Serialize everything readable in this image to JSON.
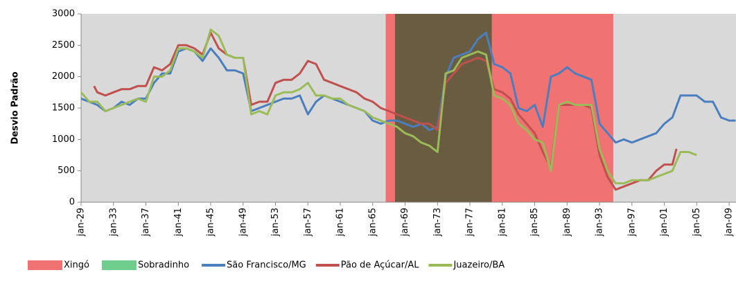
{
  "chart_data": {
    "type": "line",
    "y_label": "Desvio Padrão",
    "xlim": [
      1929,
      2009.85
    ],
    "ylim": [
      0,
      3000
    ],
    "yticks": [
      0,
      500,
      1000,
      1500,
      2000,
      2500,
      3000
    ],
    "xticks": [
      {
        "value": 1929,
        "label": "jan-29"
      },
      {
        "value": 1933,
        "label": "jan-33"
      },
      {
        "value": 1937,
        "label": "jan-37"
      },
      {
        "value": 1941,
        "label": "jan-41"
      },
      {
        "value": 1945,
        "label": "jan-45"
      },
      {
        "value": 1949,
        "label": "jan-49"
      },
      {
        "value": 1953,
        "label": "jan-53"
      },
      {
        "value": 1957,
        "label": "jan-57"
      },
      {
        "value": 1961,
        "label": "jan-61"
      },
      {
        "value": 1965,
        "label": "jan-65"
      },
      {
        "value": 1969,
        "label": "jan-69"
      },
      {
        "value": 1973,
        "label": "jan-73"
      },
      {
        "value": 1977,
        "label": "jan-77"
      },
      {
        "value": 1981,
        "label": "jan-81"
      },
      {
        "value": 1985,
        "label": "jan-85"
      },
      {
        "value": 1989,
        "label": "jan-89"
      },
      {
        "value": 1993,
        "label": "jan-93"
      },
      {
        "value": 1997,
        "label": "jan-97"
      },
      {
        "value": 2001,
        "label": "jan-01"
      },
      {
        "value": 2005,
        "label": "jan-05"
      },
      {
        "value": 2009,
        "label": "jan-09"
      }
    ],
    "background": "#d9d9d9",
    "bands": [
      {
        "name": "Xingó",
        "color": "#f07272",
        "start": 1966.6,
        "end": 1994.7
      },
      {
        "name": "Sobradinho",
        "color": "#6fce8e",
        "start": 1967.75,
        "end": 1979.7
      }
    ],
    "series": [
      {
        "name": "São Francisco/MG",
        "color": "#4a7ebf",
        "x": [
          1929,
          1930,
          1931,
          1932,
          1933,
          1934,
          1935,
          1936,
          1937,
          1938,
          1939,
          1940,
          1941,
          1942,
          1943,
          1944,
          1945,
          1946,
          1947,
          1948,
          1949,
          1950,
          1951,
          1952,
          1953,
          1954,
          1955,
          1956,
          1957,
          1958,
          1959,
          1960,
          1961,
          1962,
          1963,
          1964,
          1965,
          1966,
          1967,
          1968,
          1969,
          1970,
          1971,
          1972,
          1973,
          1974,
          1975,
          1976,
          1977,
          1978,
          1979,
          1980,
          1981,
          1982,
          1983,
          1984,
          1985,
          1986,
          1987,
          1988,
          1989,
          1990,
          1991,
          1992,
          1993,
          1994,
          1995,
          1996,
          1997,
          1998,
          1999,
          2000,
          2001,
          2002,
          2003,
          2004,
          2005,
          2006,
          2007,
          2008,
          2009,
          2009.8
        ],
        "values": [
          1650,
          1600,
          1550,
          1450,
          1500,
          1600,
          1550,
          1650,
          1650,
          1900,
          2050,
          2050,
          2400,
          2450,
          2400,
          2250,
          2450,
          2300,
          2100,
          2100,
          2050,
          1450,
          1500,
          1550,
          1600,
          1650,
          1650,
          1700,
          1400,
          1600,
          1700,
          1650,
          1600,
          1550,
          1500,
          1450,
          1300,
          1250,
          1300,
          1300,
          1250,
          1200,
          1250,
          1150,
          1200,
          2000,
          2300,
          2350,
          2400,
          2600,
          2700,
          2200,
          2150,
          2050,
          1500,
          1450,
          1550,
          1200,
          2000,
          2050,
          2150,
          2050,
          2000,
          1950,
          1250,
          1100,
          950,
          1000,
          950,
          1000,
          1050,
          1100,
          1250,
          1350,
          1700,
          1700,
          1700,
          1600,
          1600,
          1350,
          1300,
          1300
        ]
      },
      {
        "name": "Pão de Açúcar/AL",
        "color": "#c0504d",
        "x": [
          1930.6,
          1931,
          1932,
          1933,
          1934,
          1935,
          1936,
          1937,
          1938,
          1939,
          1940,
          1941,
          1942,
          1943,
          1944,
          1945,
          1946,
          1947,
          1948,
          1949,
          1950,
          1951,
          1952,
          1953,
          1954,
          1955,
          1956,
          1957,
          1958,
          1959,
          1960,
          1961,
          1962,
          1963,
          1964,
          1965,
          1966,
          1967,
          1968,
          1969,
          1970,
          1971,
          1972,
          1973,
          1974,
          1975,
          1976,
          1977,
          1978,
          1979,
          1980,
          1981,
          1982,
          1983,
          1984,
          1985,
          1986,
          1987,
          1988,
          1989,
          1990,
          1991,
          1992,
          1993,
          1994,
          1995,
          1996,
          1997,
          1998,
          1999,
          2000,
          2001,
          2002,
          2002.5
        ],
        "values": [
          1850,
          1750,
          1700,
          1750,
          1800,
          1800,
          1850,
          1850,
          2150,
          2100,
          2200,
          2500,
          2500,
          2450,
          2350,
          2700,
          2450,
          2350,
          2300,
          2300,
          1550,
          1600,
          1600,
          1900,
          1950,
          1950,
          2050,
          2250,
          2200,
          1950,
          1900,
          1850,
          1800,
          1750,
          1650,
          1600,
          1500,
          1450,
          1400,
          1350,
          1300,
          1250,
          1250,
          1150,
          1900,
          2050,
          2200,
          2250,
          2300,
          2250,
          1800,
          1750,
          1650,
          1400,
          1250,
          1100,
          800,
          550,
          1550,
          1550,
          1550,
          1550,
          1500,
          750,
          400,
          200,
          250,
          300,
          350,
          350,
          500,
          600,
          600,
          850
        ]
      },
      {
        "name": "Juazeiro/BA",
        "color": "#9bbb59",
        "x": [
          1929,
          1930,
          1931,
          1932,
          1933,
          1934,
          1935,
          1936,
          1937,
          1938,
          1939,
          1940,
          1941,
          1942,
          1943,
          1944,
          1945,
          1946,
          1947,
          1948,
          1949,
          1950,
          1951,
          1952,
          1953,
          1954,
          1955,
          1956,
          1957,
          1958,
          1959,
          1960,
          1961,
          1962,
          1963,
          1964,
          1965,
          1966,
          1967,
          1968,
          1969,
          1970,
          1971,
          1972,
          1973,
          1974,
          1975,
          1976,
          1977,
          1978,
          1979,
          1980,
          1981,
          1982,
          1983,
          1984,
          1985,
          1986,
          1987,
          1988,
          1989,
          1990,
          1991,
          1992,
          1993,
          1994,
          1995,
          1996,
          1997,
          1998,
          1999,
          2000,
          2001,
          2002,
          2003,
          2004,
          2005
        ],
        "values": [
          1750,
          1600,
          1600,
          1450,
          1500,
          1550,
          1600,
          1650,
          1600,
          2000,
          2000,
          2100,
          2450,
          2450,
          2400,
          2300,
          2750,
          2650,
          2350,
          2300,
          2300,
          1400,
          1450,
          1400,
          1700,
          1750,
          1750,
          1800,
          1900,
          1700,
          1700,
          1650,
          1650,
          1550,
          1500,
          1450,
          1350,
          1300,
          1250,
          1200,
          1100,
          1050,
          950,
          900,
          800,
          2050,
          2100,
          2300,
          2350,
          2400,
          2350,
          1700,
          1650,
          1550,
          1250,
          1150,
          1000,
          950,
          500,
          1550,
          1600,
          1550,
          1550,
          1550,
          850,
          500,
          300,
          300,
          350,
          350,
          350,
          400,
          450,
          500,
          800,
          800,
          750
        ]
      }
    ]
  }
}
